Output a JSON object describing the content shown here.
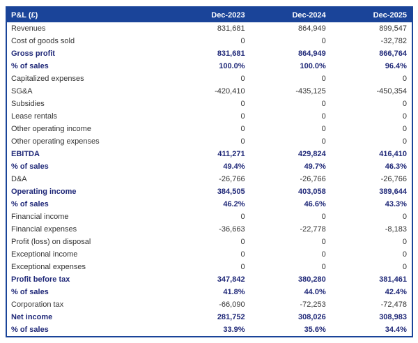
{
  "chart_data": {
    "type": "table",
    "title": "P&L (£)",
    "currency": "£",
    "columns": [
      "Dec-2023",
      "Dec-2024",
      "Dec-2025"
    ],
    "rows": [
      {
        "label": "Revenues",
        "values": [
          "831,681",
          "864,949",
          "899,547"
        ],
        "bold": false
      },
      {
        "label": "Cost of goods sold",
        "values": [
          "0",
          "0",
          "-32,782"
        ],
        "bold": false
      },
      {
        "label": "Gross profit",
        "values": [
          "831,681",
          "864,949",
          "866,764"
        ],
        "bold": true
      },
      {
        "label": "% of sales",
        "values": [
          "100.0%",
          "100.0%",
          "96.4%"
        ],
        "bold": true
      },
      {
        "label": "Capitalized expenses",
        "values": [
          "0",
          "0",
          "0"
        ],
        "bold": false
      },
      {
        "label": "SG&A",
        "values": [
          "-420,410",
          "-435,125",
          "-450,354"
        ],
        "bold": false
      },
      {
        "label": "Subsidies",
        "values": [
          "0",
          "0",
          "0"
        ],
        "bold": false
      },
      {
        "label": "Lease rentals",
        "values": [
          "0",
          "0",
          "0"
        ],
        "bold": false
      },
      {
        "label": "Other operating income",
        "values": [
          "0",
          "0",
          "0"
        ],
        "bold": false
      },
      {
        "label": "Other operating expenses",
        "values": [
          "0",
          "0",
          "0"
        ],
        "bold": false
      },
      {
        "label": "EBITDA",
        "values": [
          "411,271",
          "429,824",
          "416,410"
        ],
        "bold": true
      },
      {
        "label": "% of sales",
        "values": [
          "49.4%",
          "49.7%",
          "46.3%"
        ],
        "bold": true
      },
      {
        "label": "D&A",
        "values": [
          "-26,766",
          "-26,766",
          "-26,766"
        ],
        "bold": false
      },
      {
        "label": "Operating income",
        "values": [
          "384,505",
          "403,058",
          "389,644"
        ],
        "bold": true
      },
      {
        "label": "% of sales",
        "values": [
          "46.2%",
          "46.6%",
          "43.3%"
        ],
        "bold": true
      },
      {
        "label": "Financial income",
        "values": [
          "0",
          "0",
          "0"
        ],
        "bold": false
      },
      {
        "label": "Financial expenses",
        "values": [
          "-36,663",
          "-22,778",
          "-8,183"
        ],
        "bold": false
      },
      {
        "label": "Profit (loss) on disposal",
        "values": [
          "0",
          "0",
          "0"
        ],
        "bold": false
      },
      {
        "label": "Exceptional income",
        "values": [
          "0",
          "0",
          "0"
        ],
        "bold": false
      },
      {
        "label": "Exceptional expenses",
        "values": [
          "0",
          "0",
          "0"
        ],
        "bold": false
      },
      {
        "label": "Profit before tax",
        "values": [
          "347,842",
          "380,280",
          "381,461"
        ],
        "bold": true
      },
      {
        "label": "% of sales",
        "values": [
          "41.8%",
          "44.0%",
          "42.4%"
        ],
        "bold": true
      },
      {
        "label": "Corporation tax",
        "values": [
          "-66,090",
          "-72,253",
          "-72,478"
        ],
        "bold": false
      },
      {
        "label": "Net income",
        "values": [
          "281,752",
          "308,026",
          "308,983"
        ],
        "bold": true
      },
      {
        "label": "% of sales",
        "values": [
          "33.9%",
          "35.6%",
          "34.4%"
        ],
        "bold": true
      }
    ],
    "colors": {
      "header_bg": "#1a4499",
      "header_text": "#ffffff",
      "border": "#1a4499",
      "bold_row_text": "#1f2878",
      "regular_row_text": "#333333"
    },
    "layout": {
      "grid": "outer border only, no inner gridlines",
      "value_alignment": "right"
    }
  }
}
